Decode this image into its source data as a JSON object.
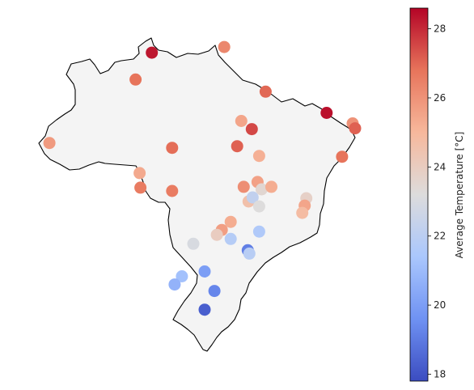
{
  "chart_data": {
    "type": "scatter",
    "title": "",
    "xlabel": "",
    "ylabel": "",
    "colorbar": {
      "label": "Average Temperature [°C]",
      "range": [
        17.8,
        28.6
      ],
      "ticks": [
        "18",
        "20",
        "22",
        "24",
        "26",
        "28"
      ],
      "colormap": "coolwarm",
      "colormap_stops": [
        "#3b4cc0",
        "#6f92f3",
        "#aac7fd",
        "#dddcdc",
        "#f7b89c",
        "#e7745b",
        "#b40426"
      ]
    },
    "map": {
      "region": "Brazil",
      "fill_color": "#f4f4f4",
      "border_color": "#000000"
    },
    "grid": false,
    "legend": "colorbar-right",
    "points": [
      {
        "lon": -60.0,
        "lat": 3.5,
        "temp": 28.3
      },
      {
        "lon": -51.1,
        "lat": 4.2,
        "temp": 26.3
      },
      {
        "lon": -62.0,
        "lat": 0.2,
        "temp": 26.8
      },
      {
        "lon": -46.0,
        "lat": -1.3,
        "temp": 27.0
      },
      {
        "lon": -38.5,
        "lat": -3.9,
        "temp": 28.4
      },
      {
        "lon": -35.3,
        "lat": -5.2,
        "temp": 26.0
      },
      {
        "lon": -35.0,
        "lat": -5.8,
        "temp": 27.1
      },
      {
        "lon": -49.0,
        "lat": -4.9,
        "temp": 25.5
      },
      {
        "lon": -47.7,
        "lat": -5.9,
        "temp": 27.5
      },
      {
        "lon": -72.6,
        "lat": -7.6,
        "temp": 25.8
      },
      {
        "lon": -57.5,
        "lat": -8.2,
        "temp": 26.9
      },
      {
        "lon": -49.5,
        "lat": -8.0,
        "temp": 27.1
      },
      {
        "lon": -46.8,
        "lat": -9.2,
        "temp": 25.2
      },
      {
        "lon": -36.6,
        "lat": -9.3,
        "temp": 26.8
      },
      {
        "lon": -61.5,
        "lat": -11.3,
        "temp": 25.4
      },
      {
        "lon": -61.4,
        "lat": -13.1,
        "temp": 26.6
      },
      {
        "lon": -57.5,
        "lat": -13.5,
        "temp": 26.6
      },
      {
        "lon": -48.7,
        "lat": -13.0,
        "temp": 26.1
      },
      {
        "lon": -47.0,
        "lat": -12.4,
        "temp": 25.6
      },
      {
        "lon": -46.5,
        "lat": -13.3,
        "temp": 23.5
      },
      {
        "lon": -45.3,
        "lat": -13.0,
        "temp": 25.3
      },
      {
        "lon": -48.1,
        "lat": -14.8,
        "temp": 24.6
      },
      {
        "lon": -47.6,
        "lat": -14.3,
        "temp": 22.2
      },
      {
        "lon": -46.8,
        "lat": -15.4,
        "temp": 23.2
      },
      {
        "lon": -41.0,
        "lat": -14.4,
        "temp": 23.8
      },
      {
        "lon": -41.2,
        "lat": -15.3,
        "temp": 25.5
      },
      {
        "lon": -41.5,
        "lat": -16.2,
        "temp": 24.8
      },
      {
        "lon": -50.3,
        "lat": -17.3,
        "temp": 25.3
      },
      {
        "lon": -51.4,
        "lat": -18.3,
        "temp": 25.7
      },
      {
        "lon": -52.0,
        "lat": -18.9,
        "temp": 24.0
      },
      {
        "lon": -50.3,
        "lat": -19.4,
        "temp": 21.8
      },
      {
        "lon": -46.8,
        "lat": -18.5,
        "temp": 21.6
      },
      {
        "lon": -54.9,
        "lat": -20.0,
        "temp": 23.0
      },
      {
        "lon": -48.2,
        "lat": -20.8,
        "temp": 19.1
      },
      {
        "lon": -48.0,
        "lat": -21.2,
        "temp": 21.9
      },
      {
        "lon": -53.5,
        "lat": -23.4,
        "temp": 20.0
      },
      {
        "lon": -56.3,
        "lat": -24.0,
        "temp": 21.2
      },
      {
        "lon": -57.2,
        "lat": -25.0,
        "temp": 20.7
      },
      {
        "lon": -52.3,
        "lat": -25.8,
        "temp": 19.3
      },
      {
        "lon": -53.5,
        "lat": -28.1,
        "temp": 18.3
      }
    ]
  }
}
